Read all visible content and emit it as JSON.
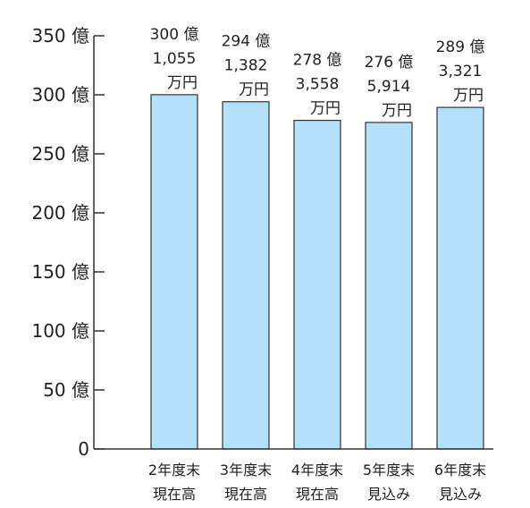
{
  "chart_data": {
    "type": "bar",
    "categories": [
      [
        "2年度末",
        "現在高"
      ],
      [
        "3年度末",
        "現在高"
      ],
      [
        "4年度末",
        "現在高"
      ],
      [
        "5年度末",
        "見込み"
      ],
      [
        "6年度末",
        "見込み"
      ]
    ],
    "values": [
      300.1055,
      294.1382,
      278.3558,
      276.5914,
      289.3321
    ],
    "data_labels": [
      [
        "300 億",
        "1,055",
        "万円"
      ],
      [
        "294 億",
        "1,382",
        "万円"
      ],
      [
        "278 億",
        "3,558",
        "万円"
      ],
      [
        "276 億",
        "5,914",
        "万円"
      ],
      [
        "289 億",
        "3,321",
        "万円"
      ]
    ],
    "yticks": [
      0,
      50,
      100,
      150,
      200,
      250,
      300,
      350
    ],
    "ytick_labels": [
      "0",
      "50 億",
      "100 億",
      "150 億",
      "200 億",
      "250 億",
      "300 億",
      "350 億"
    ],
    "ylim": [
      0,
      350
    ],
    "bar_color": "#b3e0fb",
    "grid": false,
    "title": "",
    "xlabel": "",
    "ylabel": ""
  }
}
